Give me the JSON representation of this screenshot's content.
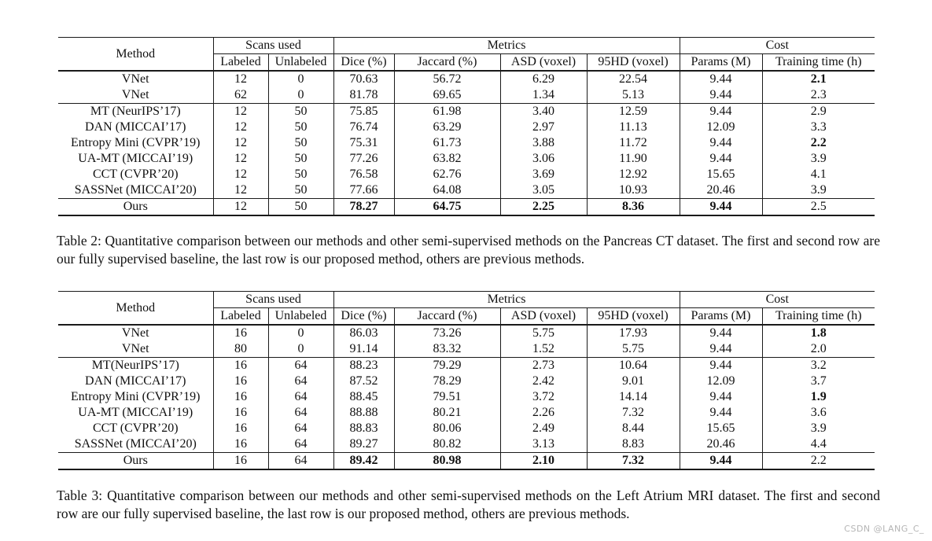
{
  "colors": {
    "text": "#111111",
    "rule": "#1a1a1a",
    "background": "#ffffff",
    "watermark": "#b5b5b5"
  },
  "watermark": "CSDN @LANG_C_",
  "tables": [
    {
      "caption": "Table 2: Quantitative comparison between our methods and other semi-supervised methods on the Pancreas CT dataset. The first and second row are our fully supervised baseline, the last row is our proposed method, others are previous methods.",
      "header": {
        "method_label": "Method",
        "groups": [
          {
            "label": "Scans used",
            "cols": [
              "Labeled",
              "Unlabeled"
            ]
          },
          {
            "label": "Metrics",
            "cols": [
              "Dice (%)",
              "Jaccard (%)",
              "ASD (voxel)",
              "95HD (voxel)"
            ]
          },
          {
            "label": "Cost",
            "cols": [
              "Params (M)",
              "Training time (h)"
            ]
          }
        ]
      },
      "row_groups": [
        [
          {
            "method": "VNet",
            "values": [
              "12",
              "0",
              "70.63",
              "56.72",
              "6.29",
              "22.54",
              "9.44",
              "2.1"
            ],
            "bold": [
              7
            ]
          },
          {
            "method": "VNet",
            "values": [
              "62",
              "0",
              "81.78",
              "69.65",
              "1.34",
              "5.13",
              "9.44",
              "2.3"
            ],
            "bold": []
          }
        ],
        [
          {
            "method": "MT (NeurIPS’17)",
            "values": [
              "12",
              "50",
              "75.85",
              "61.98",
              "3.40",
              "12.59",
              "9.44",
              "2.9"
            ],
            "bold": []
          },
          {
            "method": "DAN (MICCAI’17)",
            "values": [
              "12",
              "50",
              "76.74",
              "63.29",
              "2.97",
              "11.13",
              "12.09",
              "3.3"
            ],
            "bold": []
          },
          {
            "method": "Entropy Mini (CVPR’19)",
            "values": [
              "12",
              "50",
              "75.31",
              "61.73",
              "3.88",
              "11.72",
              "9.44",
              "2.2"
            ],
            "bold": [
              7
            ]
          },
          {
            "method": "UA-MT (MICCAI’19)",
            "values": [
              "12",
              "50",
              "77.26",
              "63.82",
              "3.06",
              "11.90",
              "9.44",
              "3.9"
            ],
            "bold": []
          },
          {
            "method": "CCT (CVPR’20)",
            "values": [
              "12",
              "50",
              "76.58",
              "62.76",
              "3.69",
              "12.92",
              "15.65",
              "4.1"
            ],
            "bold": []
          },
          {
            "method": "SASSNet (MICCAI’20)",
            "values": [
              "12",
              "50",
              "77.66",
              "64.08",
              "3.05",
              "10.93",
              "20.46",
              "3.9"
            ],
            "bold": []
          }
        ],
        [
          {
            "method": "Ours",
            "values": [
              "12",
              "50",
              "78.27",
              "64.75",
              "2.25",
              "8.36",
              "9.44",
              "2.5"
            ],
            "bold": [
              2,
              3,
              4,
              5,
              6
            ]
          }
        ]
      ]
    },
    {
      "caption": "Table 3: Quantitative comparison between our methods and other semi-supervised methods on the Left Atrium MRI dataset. The first and second row are our fully supervised baseline, the last row is our proposed method, others are previous methods.",
      "header": {
        "method_label": "Method",
        "groups": [
          {
            "label": "Scans used",
            "cols": [
              "Labeled",
              "Unlabeled"
            ]
          },
          {
            "label": "Metrics",
            "cols": [
              "Dice (%)",
              "Jaccard (%)",
              "ASD (voxel)",
              "95HD (voxel)"
            ]
          },
          {
            "label": "Cost",
            "cols": [
              "Params (M)",
              "Training time (h)"
            ]
          }
        ]
      },
      "row_groups": [
        [
          {
            "method": "VNet",
            "values": [
              "16",
              "0",
              "86.03",
              "73.26",
              "5.75",
              "17.93",
              "9.44",
              "1.8"
            ],
            "bold": [
              7
            ]
          },
          {
            "method": "VNet",
            "values": [
              "80",
              "0",
              "91.14",
              "83.32",
              "1.52",
              "5.75",
              "9.44",
              "2.0"
            ],
            "bold": []
          }
        ],
        [
          {
            "method": "MT(NeurIPS’17)",
            "values": [
              "16",
              "64",
              "88.23",
              "79.29",
              "2.73",
              "10.64",
              "9.44",
              "3.2"
            ],
            "bold": []
          },
          {
            "method": "DAN (MICCAI’17)",
            "values": [
              "16",
              "64",
              "87.52",
              "78.29",
              "2.42",
              "9.01",
              "12.09",
              "3.7"
            ],
            "bold": []
          },
          {
            "method": "Entropy Mini (CVPR’19)",
            "values": [
              "16",
              "64",
              "88.45",
              "79.51",
              "3.72",
              "14.14",
              "9.44",
              "1.9"
            ],
            "bold": [
              7
            ]
          },
          {
            "method": "UA-MT (MICCAI’19)",
            "values": [
              "16",
              "64",
              "88.88",
              "80.21",
              "2.26",
              "7.32",
              "9.44",
              "3.6"
            ],
            "bold": []
          },
          {
            "method": "CCT (CVPR’20)",
            "values": [
              "16",
              "64",
              "88.83",
              "80.06",
              "2.49",
              "8.44",
              "15.65",
              "3.9"
            ],
            "bold": []
          },
          {
            "method": "SASSNet (MICCAI’20)",
            "values": [
              "16",
              "64",
              "89.27",
              "80.82",
              "3.13",
              "8.83",
              "20.46",
              "4.4"
            ],
            "bold": []
          }
        ],
        [
          {
            "method": "Ours",
            "values": [
              "16",
              "64",
              "89.42",
              "80.98",
              "2.10",
              "7.32",
              "9.44",
              "2.2"
            ],
            "bold": [
              2,
              3,
              4,
              5,
              6
            ]
          }
        ]
      ]
    }
  ]
}
